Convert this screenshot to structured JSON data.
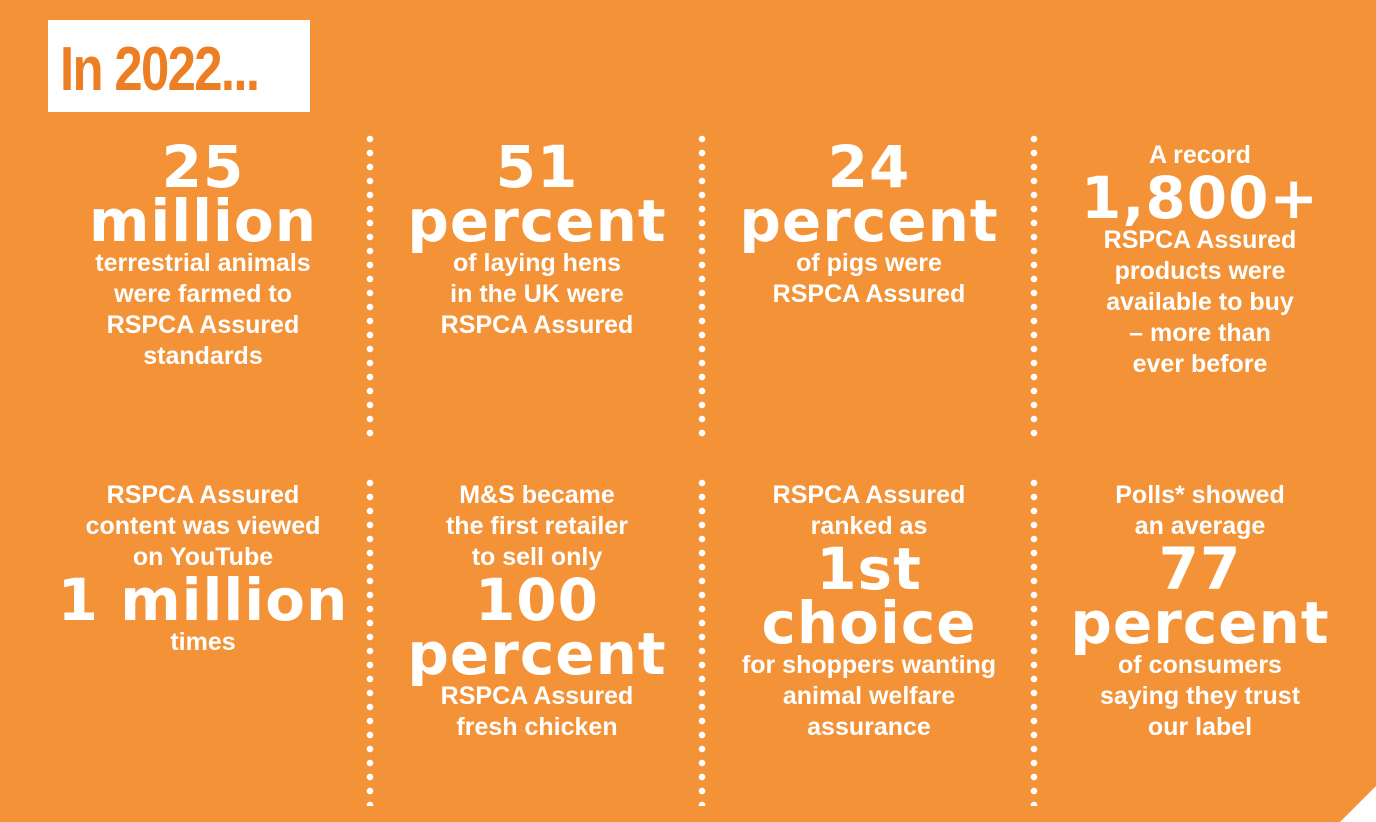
{
  "header": {
    "title": "In 2022..."
  },
  "cells": [
    {
      "before": [],
      "figure": [
        "25",
        "million"
      ],
      "after": [
        "terrestrial animals",
        "were farmed to",
        "RSPCA Assured",
        "standards"
      ]
    },
    {
      "before": [],
      "figure": [
        "51",
        "percent"
      ],
      "after": [
        "of laying hens",
        "in the UK were",
        "RSPCA Assured"
      ]
    },
    {
      "before": [],
      "figure": [
        "24",
        "percent"
      ],
      "after": [
        "of pigs were",
        "RSPCA Assured"
      ]
    },
    {
      "before": [
        "A record"
      ],
      "figure": [
        "1,800+"
      ],
      "after": [
        "RSPCA Assured",
        "products were",
        "available to buy",
        "– more than",
        "ever before"
      ]
    },
    {
      "before": [
        "RSPCA Assured",
        "content was viewed",
        "on YouTube"
      ],
      "figure": [
        "1 million"
      ],
      "after": [
        "times"
      ]
    },
    {
      "before": [
        "M&S became",
        "the first retailer",
        "to sell only"
      ],
      "figure": [
        "100",
        "percent"
      ],
      "after": [
        "RSPCA Assured",
        "fresh chicken"
      ]
    },
    {
      "before": [
        "RSPCA Assured",
        "ranked as"
      ],
      "figure": [
        "1st",
        "choice"
      ],
      "after": [
        "for shoppers wanting",
        "animal welfare",
        "assurance"
      ]
    },
    {
      "before": [
        "Polls* showed",
        "an average"
      ],
      "figure": [
        "77",
        "percent"
      ],
      "after": [
        "of consumers",
        "saying they trust",
        "our label"
      ]
    }
  ]
}
